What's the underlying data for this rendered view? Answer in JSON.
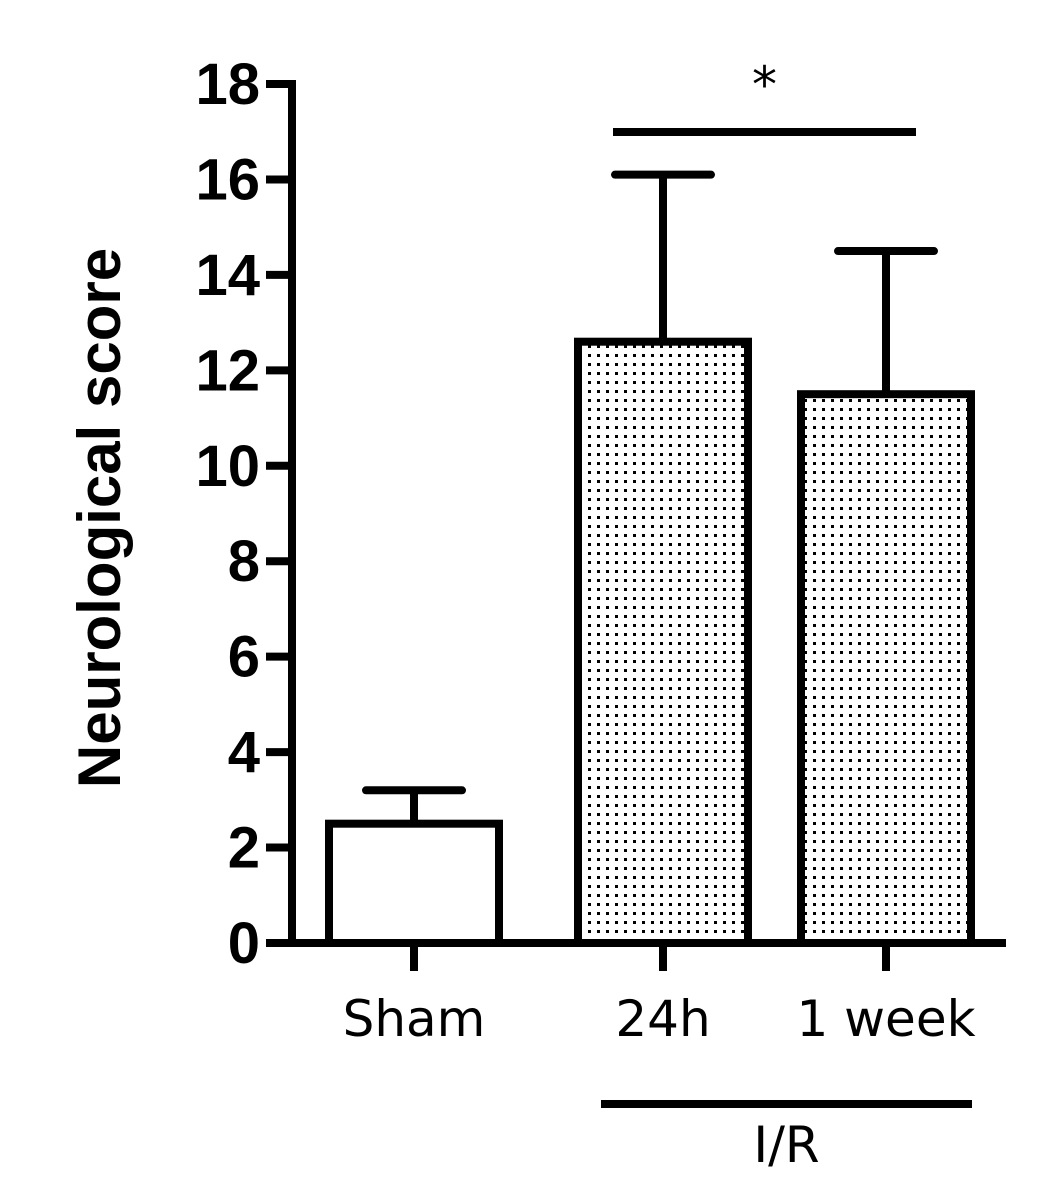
{
  "chart_data": {
    "type": "bar",
    "title": "",
    "xlabel": "",
    "ylabel": "Neurological score",
    "ylim": [
      0,
      18
    ],
    "yticks": [
      0,
      2,
      4,
      6,
      8,
      10,
      12,
      14,
      16,
      18
    ],
    "categories": [
      "Sham",
      "24h",
      "1 week"
    ],
    "values": [
      2.5,
      12.6,
      11.5
    ],
    "error_upper": [
      3.2,
      16.1,
      14.5
    ],
    "fills": [
      "solid-white",
      "dotted",
      "dotted"
    ],
    "group_label": {
      "text": "I/R",
      "categories": [
        "24h",
        "1 week"
      ]
    },
    "significance": {
      "label": "*",
      "between": [
        "24h",
        "1 week"
      ]
    },
    "grid": false,
    "colors": {
      "stroke": "#000000",
      "fill": "#ffffff",
      "dots": "#000000"
    }
  }
}
